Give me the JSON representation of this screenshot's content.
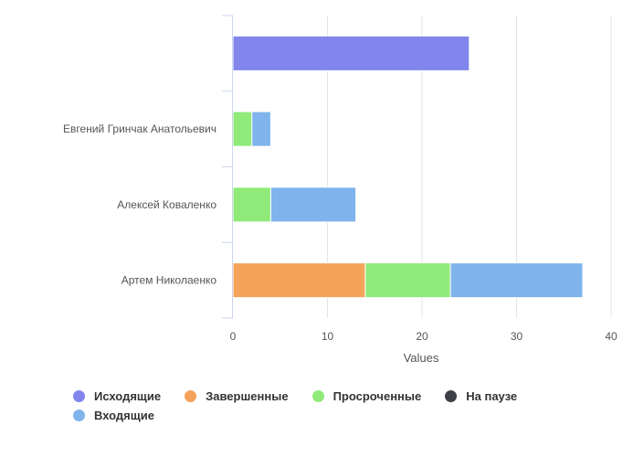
{
  "chart_data": {
    "type": "bar",
    "orientation": "horizontal",
    "stacked": true,
    "categories": [
      "",
      "Евгений Гринчак Анатольевич",
      "Алексей Коваленко",
      "Артем Николаенко"
    ],
    "series": [
      {
        "name": "Исходящие",
        "color": "#8185ec",
        "values": [
          25,
          0,
          0,
          0
        ]
      },
      {
        "name": "Завершенные",
        "color": "#f5a25b",
        "values": [
          0,
          0,
          0,
          14
        ]
      },
      {
        "name": "Просроченные",
        "color": "#8fea7a",
        "values": [
          0,
          2,
          4,
          9
        ]
      },
      {
        "name": "На паузе",
        "color": "#3f3f46",
        "values": [
          0,
          0,
          0,
          0
        ]
      },
      {
        "name": "Входящие",
        "color": "#7fb4ec",
        "values": [
          0,
          2,
          9,
          14
        ]
      }
    ],
    "x_ticks": [
      0,
      10,
      20,
      30,
      40
    ],
    "xlabel": "Values",
    "xlim": [
      0,
      40
    ],
    "grid": true,
    "legend_position": "bottom"
  }
}
